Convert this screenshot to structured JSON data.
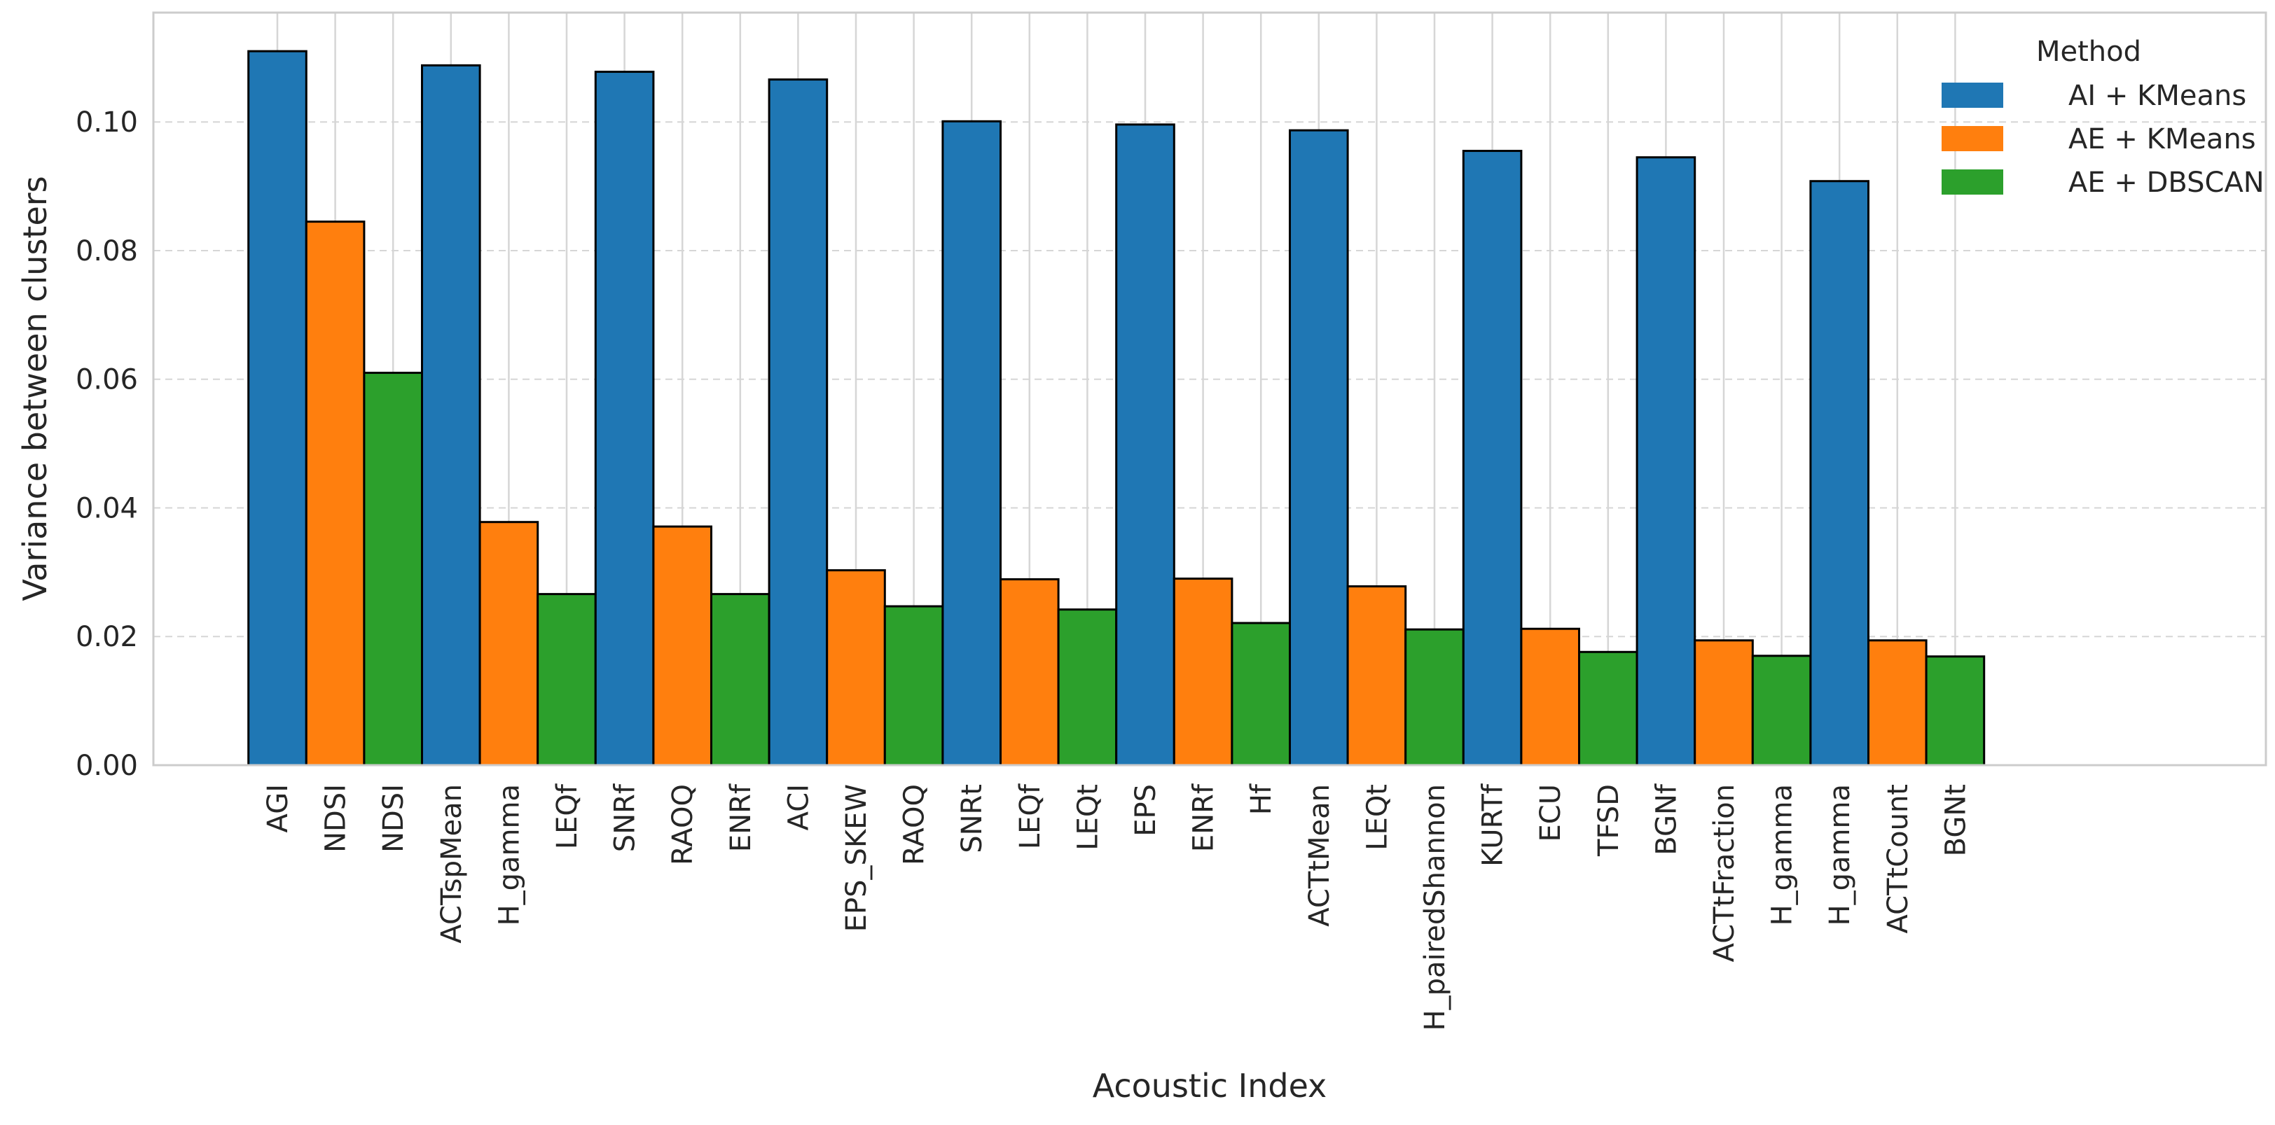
{
  "chart_data": {
    "type": "bar",
    "title": "",
    "xlabel": "Acoustic Index",
    "ylabel": "Variance between clusters",
    "ylim": [
      0,
      0.117
    ],
    "yticks": [
      0.0,
      0.02,
      0.04,
      0.06,
      0.08,
      0.1
    ],
    "ytick_labels": [
      "0.00",
      "0.02",
      "0.04",
      "0.06",
      "0.08",
      "0.10"
    ],
    "grid": "y-dashed, x-solid",
    "legend_placement": "top-right",
    "legend": {
      "title": "Method",
      "entries": [
        {
          "label": "AI + KMeans",
          "color": "#1f77b4"
        },
        {
          "label": "AE + KMeans",
          "color": "#ff7f0e"
        },
        {
          "label": "AE + DBSCAN",
          "color": "#2ca02c"
        }
      ]
    },
    "groups": 10,
    "bars": [
      {
        "group": 1,
        "method": "AI + KMeans",
        "label": "AGI",
        "value": 0.111
      },
      {
        "group": 1,
        "method": "AE + KMeans",
        "label": "NDSI",
        "value": 0.0845
      },
      {
        "group": 1,
        "method": "AE + DBSCAN",
        "label": "NDSI",
        "value": 0.061
      },
      {
        "group": 2,
        "method": "AI + KMeans",
        "label": "ACTspMean",
        "value": 0.1088
      },
      {
        "group": 2,
        "method": "AE + KMeans",
        "label": "H_gamma",
        "value": 0.0378
      },
      {
        "group": 2,
        "method": "AE + DBSCAN",
        "label": "LEQf",
        "value": 0.0266
      },
      {
        "group": 3,
        "method": "AI + KMeans",
        "label": "SNRf",
        "value": 0.1078
      },
      {
        "group": 3,
        "method": "AE + KMeans",
        "label": "RAOQ",
        "value": 0.0371
      },
      {
        "group": 3,
        "method": "AE + DBSCAN",
        "label": "ENRf",
        "value": 0.0266
      },
      {
        "group": 4,
        "method": "AI + KMeans",
        "label": "ACI",
        "value": 0.1066
      },
      {
        "group": 4,
        "method": "AE + KMeans",
        "label": "EPS_SKEW",
        "value": 0.0303
      },
      {
        "group": 4,
        "method": "AE + DBSCAN",
        "label": "RAOQ",
        "value": 0.0247
      },
      {
        "group": 5,
        "method": "AI + KMeans",
        "label": "SNRt",
        "value": 0.1001
      },
      {
        "group": 5,
        "method": "AE + KMeans",
        "label": "LEQf",
        "value": 0.0289
      },
      {
        "group": 5,
        "method": "AE + DBSCAN",
        "label": "LEQt",
        "value": 0.0242
      },
      {
        "group": 6,
        "method": "AI + KMeans",
        "label": "EPS",
        "value": 0.0996
      },
      {
        "group": 6,
        "method": "AE + KMeans",
        "label": "ENRf",
        "value": 0.029
      },
      {
        "group": 6,
        "method": "AE + DBSCAN",
        "label": "Hf",
        "value": 0.0221
      },
      {
        "group": 7,
        "method": "AI + KMeans",
        "label": "ACTtMean",
        "value": 0.0987
      },
      {
        "group": 7,
        "method": "AE + KMeans",
        "label": "LEQt",
        "value": 0.0278
      },
      {
        "group": 7,
        "method": "AE + DBSCAN",
        "label": "H_pairedShannon",
        "value": 0.0211
      },
      {
        "group": 8,
        "method": "AI + KMeans",
        "label": "KURTf",
        "value": 0.0955
      },
      {
        "group": 8,
        "method": "AE + KMeans",
        "label": "ECU",
        "value": 0.0212
      },
      {
        "group": 8,
        "method": "AE + DBSCAN",
        "label": "TFSD",
        "value": 0.0176
      },
      {
        "group": 9,
        "method": "AI + KMeans",
        "label": "BGNf",
        "value": 0.0945
      },
      {
        "group": 9,
        "method": "AE + KMeans",
        "label": "ACTtFraction",
        "value": 0.0194
      },
      {
        "group": 9,
        "method": "AE + DBSCAN",
        "label": "H_gamma",
        "value": 0.017
      },
      {
        "group": 10,
        "method": "AI + KMeans",
        "label": "H_gamma",
        "value": 0.0908
      },
      {
        "group": 10,
        "method": "AE + KMeans",
        "label": "ACTtCount",
        "value": 0.0194
      },
      {
        "group": 10,
        "method": "AE + DBSCAN",
        "label": "BGNt",
        "value": 0.0169
      }
    ]
  }
}
